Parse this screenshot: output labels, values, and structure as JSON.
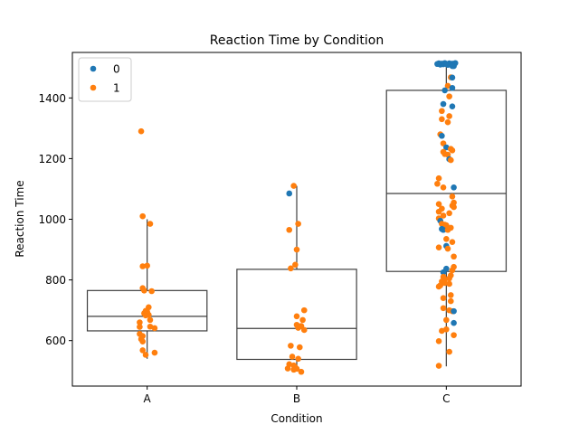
{
  "chart_data": {
    "type": "box+strip",
    "title": "Reaction Time by Condition",
    "xlabel": "Condition",
    "ylabel": "Reaction Time",
    "categories": [
      "A",
      "B",
      "C"
    ],
    "ylim": [
      450,
      1550
    ],
    "yticks": [
      600,
      800,
      1000,
      1200,
      1400
    ],
    "grid": false,
    "legend": {
      "placement": "top-left",
      "entries": [
        {
          "label": "0",
          "color": "#1f77b4"
        },
        {
          "label": "1",
          "color": "#ff7f0e"
        }
      ]
    },
    "boxes": [
      {
        "category": "A",
        "whisker_low": 540,
        "q1": 632,
        "median": 680,
        "q3": 765,
        "whisker_high": 1000
      },
      {
        "category": "B",
        "whisker_low": 505,
        "q1": 538,
        "median": 640,
        "q3": 835,
        "whisker_high": 1110
      },
      {
        "category": "C",
        "whisker_low": 515,
        "q1": 828,
        "median": 1085,
        "q3": 1425,
        "whisker_high": 1515
      }
    ],
    "points": [
      {
        "cat": 0,
        "dx": -0.04,
        "y": 1290,
        "g": 1
      },
      {
        "cat": 0,
        "dx": -0.03,
        "y": 1010,
        "g": 1
      },
      {
        "cat": 0,
        "dx": 0.02,
        "y": 985,
        "g": 1
      },
      {
        "cat": 0,
        "dx": -0.03,
        "y": 845,
        "g": 1
      },
      {
        "cat": 0,
        "dx": 0.0,
        "y": 847,
        "g": 1
      },
      {
        "cat": 0,
        "dx": -0.03,
        "y": 773,
        "g": 1
      },
      {
        "cat": 0,
        "dx": -0.02,
        "y": 765,
        "g": 1
      },
      {
        "cat": 0,
        "dx": 0.03,
        "y": 763,
        "g": 1
      },
      {
        "cat": 0,
        "dx": 0.01,
        "y": 710,
        "g": 1
      },
      {
        "cat": 0,
        "dx": -0.01,
        "y": 698,
        "g": 1
      },
      {
        "cat": 0,
        "dx": 0.0,
        "y": 695,
        "g": 1
      },
      {
        "cat": 0,
        "dx": -0.02,
        "y": 690,
        "g": 1
      },
      {
        "cat": 0,
        "dx": -0.01,
        "y": 683,
        "g": 1
      },
      {
        "cat": 0,
        "dx": 0.0,
        "y": 687,
        "g": 1
      },
      {
        "cat": 0,
        "dx": 0.01,
        "y": 685,
        "g": 1
      },
      {
        "cat": 0,
        "dx": 0.02,
        "y": 668,
        "g": 1
      },
      {
        "cat": 0,
        "dx": -0.05,
        "y": 660,
        "g": 1
      },
      {
        "cat": 0,
        "dx": -0.05,
        "y": 645,
        "g": 1
      },
      {
        "cat": 0,
        "dx": 0.02,
        "y": 646,
        "g": 1
      },
      {
        "cat": 0,
        "dx": 0.05,
        "y": 641,
        "g": 1
      },
      {
        "cat": 0,
        "dx": -0.05,
        "y": 622,
        "g": 1
      },
      {
        "cat": 0,
        "dx": -0.03,
        "y": 615,
        "g": 1
      },
      {
        "cat": 0,
        "dx": -0.04,
        "y": 605,
        "g": 1
      },
      {
        "cat": 0,
        "dx": -0.03,
        "y": 597,
        "g": 1
      },
      {
        "cat": 0,
        "dx": -0.03,
        "y": 568,
        "g": 1
      },
      {
        "cat": 0,
        "dx": 0.05,
        "y": 560,
        "g": 1
      },
      {
        "cat": 0,
        "dx": -0.01,
        "y": 553,
        "g": 1
      },
      {
        "cat": 1,
        "dx": -0.05,
        "y": 1085,
        "g": 0
      },
      {
        "cat": 1,
        "dx": -0.02,
        "y": 1110,
        "g": 1
      },
      {
        "cat": 1,
        "dx": 0.01,
        "y": 985,
        "g": 1
      },
      {
        "cat": 1,
        "dx": -0.05,
        "y": 965,
        "g": 1
      },
      {
        "cat": 1,
        "dx": 0.0,
        "y": 900,
        "g": 1
      },
      {
        "cat": 1,
        "dx": -0.01,
        "y": 850,
        "g": 1
      },
      {
        "cat": 1,
        "dx": -0.04,
        "y": 838,
        "g": 1
      },
      {
        "cat": 1,
        "dx": 0.05,
        "y": 700,
        "g": 1
      },
      {
        "cat": 1,
        "dx": 0.0,
        "y": 680,
        "g": 1
      },
      {
        "cat": 1,
        "dx": 0.04,
        "y": 668,
        "g": 1
      },
      {
        "cat": 1,
        "dx": 0.0,
        "y": 652,
        "g": 1
      },
      {
        "cat": 1,
        "dx": 0.03,
        "y": 648,
        "g": 1
      },
      {
        "cat": 1,
        "dx": 0.01,
        "y": 642,
        "g": 1
      },
      {
        "cat": 1,
        "dx": 0.05,
        "y": 635,
        "g": 1
      },
      {
        "cat": 1,
        "dx": -0.04,
        "y": 583,
        "g": 1
      },
      {
        "cat": 1,
        "dx": 0.02,
        "y": 578,
        "g": 1
      },
      {
        "cat": 1,
        "dx": -0.03,
        "y": 547,
        "g": 1
      },
      {
        "cat": 1,
        "dx": 0.01,
        "y": 540,
        "g": 1
      },
      {
        "cat": 1,
        "dx": -0.05,
        "y": 522,
        "g": 1
      },
      {
        "cat": 1,
        "dx": -0.02,
        "y": 518,
        "g": 1
      },
      {
        "cat": 1,
        "dx": -0.01,
        "y": 512,
        "g": 1
      },
      {
        "cat": 1,
        "dx": -0.06,
        "y": 508,
        "g": 1
      },
      {
        "cat": 1,
        "dx": -0.02,
        "y": 504,
        "g": 1
      },
      {
        "cat": 1,
        "dx": 0.0,
        "y": 507,
        "g": 1
      },
      {
        "cat": 1,
        "dx": 0.03,
        "y": 497,
        "g": 1
      },
      {
        "cat": 2,
        "dx": -0.06,
        "y": 1512,
        "g": 0
      },
      {
        "cat": 2,
        "dx": -0.05,
        "y": 1514,
        "g": 0
      },
      {
        "cat": 2,
        "dx": -0.04,
        "y": 1510,
        "g": 0
      },
      {
        "cat": 2,
        "dx": -0.03,
        "y": 1513,
        "g": 0
      },
      {
        "cat": 2,
        "dx": -0.02,
        "y": 1511,
        "g": 0
      },
      {
        "cat": 2,
        "dx": -0.01,
        "y": 1515,
        "g": 0
      },
      {
        "cat": 2,
        "dx": 0.0,
        "y": 1512,
        "g": 0
      },
      {
        "cat": 2,
        "dx": 0.01,
        "y": 1509,
        "g": 0
      },
      {
        "cat": 2,
        "dx": 0.02,
        "y": 1514,
        "g": 0
      },
      {
        "cat": 2,
        "dx": 0.03,
        "y": 1511,
        "g": 0
      },
      {
        "cat": 2,
        "dx": 0.04,
        "y": 1513,
        "g": 0
      },
      {
        "cat": 2,
        "dx": 0.05,
        "y": 1505,
        "g": 0
      },
      {
        "cat": 2,
        "dx": 0.06,
        "y": 1515,
        "g": 0
      },
      {
        "cat": 2,
        "dx": 0.04,
        "y": 1505,
        "g": 0
      },
      {
        "cat": 2,
        "dx": 0.03,
        "y": 1468,
        "g": 1
      },
      {
        "cat": 2,
        "dx": 0.04,
        "y": 1467,
        "g": 0
      },
      {
        "cat": 2,
        "dx": 0.01,
        "y": 1440,
        "g": 1
      },
      {
        "cat": 2,
        "dx": -0.01,
        "y": 1425,
        "g": 0
      },
      {
        "cat": 2,
        "dx": 0.04,
        "y": 1433,
        "g": 0
      },
      {
        "cat": 2,
        "dx": 0.02,
        "y": 1405,
        "g": 1
      },
      {
        "cat": 2,
        "dx": -0.02,
        "y": 1380,
        "g": 0
      },
      {
        "cat": 2,
        "dx": 0.04,
        "y": 1372,
        "g": 0
      },
      {
        "cat": 2,
        "dx": -0.03,
        "y": 1357,
        "g": 1
      },
      {
        "cat": 2,
        "dx": 0.02,
        "y": 1340,
        "g": 1
      },
      {
        "cat": 2,
        "dx": -0.03,
        "y": 1330,
        "g": 1
      },
      {
        "cat": 2,
        "dx": 0.01,
        "y": 1320,
        "g": 1
      },
      {
        "cat": 2,
        "dx": -0.04,
        "y": 1280,
        "g": 1
      },
      {
        "cat": 2,
        "dx": -0.03,
        "y": 1275,
        "g": 0
      },
      {
        "cat": 2,
        "dx": -0.02,
        "y": 1250,
        "g": 1
      },
      {
        "cat": 2,
        "dx": 0.0,
        "y": 1237,
        "g": 0
      },
      {
        "cat": 2,
        "dx": 0.03,
        "y": 1232,
        "g": 1
      },
      {
        "cat": 2,
        "dx": 0.04,
        "y": 1227,
        "g": 1
      },
      {
        "cat": 2,
        "dx": -0.02,
        "y": 1222,
        "g": 1
      },
      {
        "cat": 2,
        "dx": -0.01,
        "y": 1215,
        "g": 1
      },
      {
        "cat": 2,
        "dx": 0.01,
        "y": 1213,
        "g": 1
      },
      {
        "cat": 2,
        "dx": 0.02,
        "y": 1198,
        "g": 0
      },
      {
        "cat": 2,
        "dx": 0.03,
        "y": 1195,
        "g": 1
      },
      {
        "cat": 2,
        "dx": -0.05,
        "y": 1135,
        "g": 1
      },
      {
        "cat": 2,
        "dx": -0.06,
        "y": 1117,
        "g": 1
      },
      {
        "cat": 2,
        "dx": -0.02,
        "y": 1105,
        "g": 1
      },
      {
        "cat": 2,
        "dx": 0.05,
        "y": 1105,
        "g": 0
      },
      {
        "cat": 2,
        "dx": 0.04,
        "y": 1075,
        "g": 1
      },
      {
        "cat": 2,
        "dx": 0.05,
        "y": 1055,
        "g": 1
      },
      {
        "cat": 2,
        "dx": -0.05,
        "y": 1050,
        "g": 1
      },
      {
        "cat": 2,
        "dx": 0.04,
        "y": 1045,
        "g": 1
      },
      {
        "cat": 2,
        "dx": 0.05,
        "y": 1040,
        "g": 1
      },
      {
        "cat": 2,
        "dx": -0.03,
        "y": 1035,
        "g": 1
      },
      {
        "cat": 2,
        "dx": -0.05,
        "y": 1025,
        "g": 1
      },
      {
        "cat": 2,
        "dx": 0.02,
        "y": 1020,
        "g": 1
      },
      {
        "cat": 2,
        "dx": -0.02,
        "y": 1012,
        "g": 1
      },
      {
        "cat": 2,
        "dx": -0.05,
        "y": 1003,
        "g": 1
      },
      {
        "cat": 2,
        "dx": -0.04,
        "y": 995,
        "g": 0
      },
      {
        "cat": 2,
        "dx": -0.03,
        "y": 985,
        "g": 1
      },
      {
        "cat": 2,
        "dx": -0.01,
        "y": 982,
        "g": 1
      },
      {
        "cat": 2,
        "dx": 0.0,
        "y": 980,
        "g": 1
      },
      {
        "cat": 2,
        "dx": 0.03,
        "y": 972,
        "g": 1
      },
      {
        "cat": 2,
        "dx": -0.03,
        "y": 968,
        "g": 0
      },
      {
        "cat": 2,
        "dx": -0.02,
        "y": 965,
        "g": 0
      },
      {
        "cat": 2,
        "dx": 0.01,
        "y": 965,
        "g": 1
      },
      {
        "cat": 2,
        "dx": 0.0,
        "y": 935,
        "g": 1
      },
      {
        "cat": 2,
        "dx": 0.04,
        "y": 925,
        "g": 1
      },
      {
        "cat": 2,
        "dx": 0.0,
        "y": 912,
        "g": 0
      },
      {
        "cat": 2,
        "dx": -0.05,
        "y": 907,
        "g": 1
      },
      {
        "cat": 2,
        "dx": 0.01,
        "y": 903,
        "g": 1
      },
      {
        "cat": 2,
        "dx": 0.05,
        "y": 877,
        "g": 1
      },
      {
        "cat": 2,
        "dx": 0.05,
        "y": 843,
        "g": 1
      },
      {
        "cat": 2,
        "dx": 0.0,
        "y": 837,
        "g": 0
      },
      {
        "cat": 2,
        "dx": 0.04,
        "y": 832,
        "g": 1
      },
      {
        "cat": 2,
        "dx": -0.02,
        "y": 825,
        "g": 0
      },
      {
        "cat": 2,
        "dx": 0.03,
        "y": 815,
        "g": 1
      },
      {
        "cat": 2,
        "dx": -0.02,
        "y": 810,
        "g": 1
      },
      {
        "cat": 2,
        "dx": -0.01,
        "y": 802,
        "g": 1
      },
      {
        "cat": 2,
        "dx": 0.02,
        "y": 805,
        "g": 1
      },
      {
        "cat": 2,
        "dx": -0.03,
        "y": 795,
        "g": 1
      },
      {
        "cat": 2,
        "dx": -0.01,
        "y": 790,
        "g": 1
      },
      {
        "cat": 2,
        "dx": 0.02,
        "y": 787,
        "g": 1
      },
      {
        "cat": 2,
        "dx": -0.04,
        "y": 782,
        "g": 1
      },
      {
        "cat": 2,
        "dx": -0.05,
        "y": 778,
        "g": 1
      },
      {
        "cat": 2,
        "dx": 0.03,
        "y": 750,
        "g": 1
      },
      {
        "cat": 2,
        "dx": -0.02,
        "y": 740,
        "g": 1
      },
      {
        "cat": 2,
        "dx": 0.03,
        "y": 730,
        "g": 1
      },
      {
        "cat": 2,
        "dx": -0.02,
        "y": 707,
        "g": 1
      },
      {
        "cat": 2,
        "dx": 0.02,
        "y": 700,
        "g": 1
      },
      {
        "cat": 2,
        "dx": 0.04,
        "y": 697,
        "g": 1
      },
      {
        "cat": 2,
        "dx": 0.05,
        "y": 697,
        "g": 0
      },
      {
        "cat": 2,
        "dx": 0.0,
        "y": 668,
        "g": 1
      },
      {
        "cat": 2,
        "dx": 0.05,
        "y": 658,
        "g": 0
      },
      {
        "cat": 2,
        "dx": 0.0,
        "y": 637,
        "g": 1
      },
      {
        "cat": 2,
        "dx": -0.03,
        "y": 632,
        "g": 1
      },
      {
        "cat": 2,
        "dx": 0.05,
        "y": 618,
        "g": 1
      },
      {
        "cat": 2,
        "dx": -0.05,
        "y": 598,
        "g": 1
      },
      {
        "cat": 2,
        "dx": 0.02,
        "y": 563,
        "g": 1
      },
      {
        "cat": 2,
        "dx": -0.05,
        "y": 517,
        "g": 1
      }
    ]
  }
}
